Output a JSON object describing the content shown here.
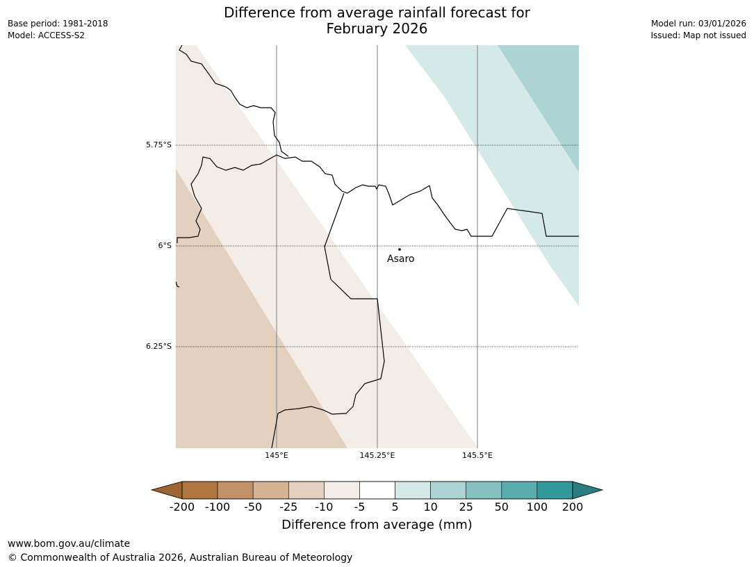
{
  "header": {
    "title_line1": "Difference from average rainfall forecast for",
    "title_line2": "February 2026",
    "base_period": "Base period: 1981-2018",
    "model": "Model: ACCESS-S2",
    "model_run": "Model run: 03/01/2026",
    "issued": "Issued: Map not issued"
  },
  "map": {
    "latitude_labels": [
      "5.75°S",
      "6°S",
      "6.25°S"
    ],
    "longitude_labels": [
      "145°E",
      "145.25°E",
      "145.5°E"
    ],
    "place": {
      "name": "Asaro"
    }
  },
  "colorbar": {
    "title": "Difference from average (mm)",
    "ticks": [
      "-200",
      "-100",
      "-50",
      "-25",
      "-10",
      "-5",
      "5",
      "10",
      "25",
      "50",
      "100",
      "200"
    ],
    "colors": {
      "below_min": "#9c6531",
      "bins": [
        "#b0763f",
        "#c29168",
        "#d4b293",
        "#e3d0bf",
        "#f4ece6",
        "#ffffff",
        "#d6e9e9",
        "#acd4d5",
        "#84c1bf",
        "#5badad",
        "#31999a"
      ],
      "above_max": "#2a7d7e"
    }
  },
  "footer": {
    "url": "www.bom.gov.au/climate",
    "copyright": "© Commonwealth of Australia 2026, Australian Bureau of Meteorology"
  }
}
